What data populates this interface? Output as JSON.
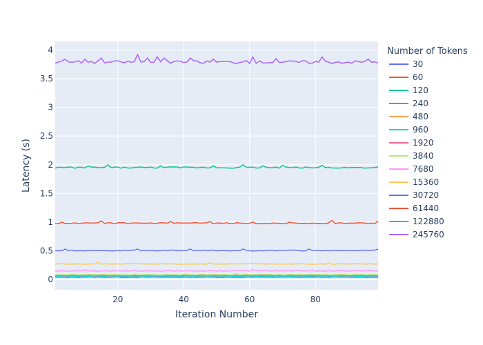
{
  "chart_data": {
    "type": "line",
    "title": "",
    "xlabel": "Iteration Number",
    "ylabel": "Latency (s)",
    "xlim": [
      1,
      99
    ],
    "ylim": [
      -0.18,
      4.15
    ],
    "x_ticks": [
      20,
      40,
      60,
      80
    ],
    "y_ticks": [
      0,
      0.5,
      1,
      1.5,
      2,
      2.5,
      3,
      3.5,
      4
    ],
    "y_tick_labels": [
      "0",
      "0.5",
      "1",
      "1.5",
      "2",
      "2.5",
      "3",
      "3.5",
      "4"
    ],
    "grid": true,
    "legend_title": "Number of Tokens",
    "legend_position": "right",
    "iterations": 99,
    "series": [
      {
        "name": "30",
        "color": "#636efa",
        "base": 0.04,
        "noise": 0.004,
        "spikes": []
      },
      {
        "name": "60",
        "color": "#EF553B",
        "base": 0.045,
        "noise": 0.004,
        "spikes": []
      },
      {
        "name": "120",
        "color": "#00cc96",
        "base": 0.05,
        "noise": 0.005,
        "spikes": [
          [
            58,
            0.06
          ]
        ]
      },
      {
        "name": "240",
        "color": "#ab63fa",
        "base": 0.055,
        "noise": 0.005,
        "spikes": []
      },
      {
        "name": "480",
        "color": "#FFA15A",
        "base": 0.065,
        "noise": 0.005,
        "spikes": []
      },
      {
        "name": "960",
        "color": "#19d3f3",
        "base": 0.05,
        "noise": 0.004,
        "spikes": []
      },
      {
        "name": "1920",
        "color": "#FF6692",
        "base": 0.07,
        "noise": 0.005,
        "spikes": []
      },
      {
        "name": "3840",
        "color": "#B6E880",
        "base": 0.085,
        "noise": 0.006,
        "spikes": [
          [
            56,
            0.1
          ]
        ]
      },
      {
        "name": "7680",
        "color": "#FF97FF",
        "base": 0.15,
        "noise": 0.006,
        "spikes": [
          [
            10,
            0.165
          ],
          [
            61,
            0.17
          ]
        ]
      },
      {
        "name": "15360",
        "color": "#FECB52",
        "base": 0.27,
        "noise": 0.006,
        "spikes": [
          [
            14,
            0.3
          ],
          [
            48,
            0.29
          ],
          [
            84,
            0.29
          ]
        ]
      },
      {
        "name": "30720",
        "color": "#636efa",
        "base": 0.505,
        "noise": 0.008,
        "spikes": [
          [
            4,
            0.53
          ],
          [
            26,
            0.53
          ],
          [
            42,
            0.53
          ],
          [
            58,
            0.53
          ],
          [
            78,
            0.53
          ],
          [
            99,
            0.53
          ]
        ]
      },
      {
        "name": "61440",
        "color": "#EF553B",
        "base": 0.98,
        "noise": 0.01,
        "spikes": [
          [
            3,
            1.0
          ],
          [
            15,
            1.02
          ],
          [
            36,
            1.01
          ],
          [
            48,
            1.01
          ],
          [
            61,
            1.0
          ],
          [
            72,
            1.0
          ],
          [
            85,
            1.03
          ],
          [
            99,
            1.02
          ]
        ]
      },
      {
        "name": "122880",
        "color": "#00cc96",
        "base": 1.95,
        "noise": 0.012,
        "spikes": [
          [
            11,
            1.98
          ],
          [
            17,
            2.0
          ],
          [
            33,
            1.98
          ],
          [
            49,
            1.98
          ],
          [
            58,
            2.0
          ],
          [
            64,
            1.98
          ],
          [
            70,
            1.99
          ],
          [
            82,
            1.99
          ]
        ]
      },
      {
        "name": "245760",
        "color": "#ab63fa",
        "base": 3.79,
        "noise": 0.025,
        "spikes": [
          [
            4,
            3.84
          ],
          [
            10,
            3.84
          ],
          [
            15,
            3.86
          ],
          [
            26,
            3.92
          ],
          [
            29,
            3.86
          ],
          [
            32,
            3.88
          ],
          [
            34,
            3.86
          ],
          [
            42,
            3.86
          ],
          [
            49,
            3.84
          ],
          [
            61,
            3.88
          ],
          [
            68,
            3.85
          ],
          [
            82,
            3.88
          ],
          [
            96,
            3.84
          ]
        ]
      }
    ]
  }
}
